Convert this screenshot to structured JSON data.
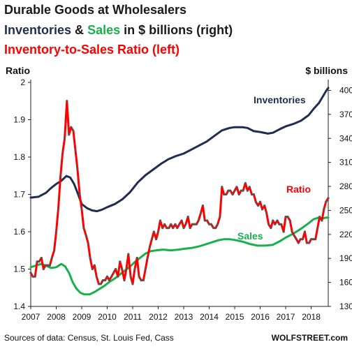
{
  "title_lines": {
    "line1": "Durable Goods at Wholesalers",
    "line2_a": "Inventories",
    "line2_b": "&",
    "line2_c": "Sales",
    "line2_d": "in $ billions  (right)",
    "line3": "Inventory-to-Sales  Ratio (left)"
  },
  "footer": {
    "source": "Sources of data: Census, St. Louis Fed, Cass",
    "brand": "WOLFSTREET.com"
  },
  "colors": {
    "inventories": "#1f2d4f",
    "sales": "#19b04b",
    "ratio": "#ff0000",
    "ratio_markers": "#555555"
  },
  "chart_data": {
    "type": "line",
    "left_axis": {
      "label": "Ratio",
      "ylim": [
        1.4,
        2.0
      ],
      "ticks": [
        "1.4",
        "1.5",
        "1.6",
        "1.7",
        "1.8",
        "1.9",
        "2"
      ]
    },
    "right_axis": {
      "label": "$ billions",
      "ylim": [
        130,
        410
      ],
      "ticks": [
        "130",
        "160",
        "190",
        "220",
        "250",
        "280",
        "310",
        "340",
        "370",
        "400"
      ]
    },
    "x_ticks": [
      "2007",
      "2008",
      "2009",
      "2010",
      "2011",
      "2012",
      "2013",
      "2014",
      "2015",
      "2016",
      "2017",
      "2018"
    ],
    "xlim": [
      2007.0,
      2018.67
    ],
    "grid": false,
    "annotations": {
      "inventories": "Inventories",
      "sales": "Sales",
      "ratio": "Ratio"
    },
    "series": [
      {
        "name": "Inventories",
        "axis": "right",
        "points": [
          [
            2007.0,
            266
          ],
          [
            2007.3,
            267
          ],
          [
            2007.6,
            272
          ],
          [
            2007.8,
            278
          ],
          [
            2008.0,
            283
          ],
          [
            2008.2,
            287
          ],
          [
            2008.4,
            293
          ],
          [
            2008.55,
            291
          ],
          [
            2008.7,
            283
          ],
          [
            2008.85,
            271
          ],
          [
            2009.0,
            258
          ],
          [
            2009.2,
            253
          ],
          [
            2009.4,
            250
          ],
          [
            2009.6,
            249
          ],
          [
            2009.8,
            251
          ],
          [
            2010.0,
            254
          ],
          [
            2010.3,
            258
          ],
          [
            2010.6,
            264
          ],
          [
            2010.9,
            273
          ],
          [
            2011.2,
            285
          ],
          [
            2011.5,
            294
          ],
          [
            2011.8,
            301
          ],
          [
            2012.1,
            308
          ],
          [
            2012.4,
            314
          ],
          [
            2012.7,
            318
          ],
          [
            2013.0,
            321
          ],
          [
            2013.3,
            326
          ],
          [
            2013.6,
            331
          ],
          [
            2013.9,
            336
          ],
          [
            2014.2,
            343
          ],
          [
            2014.5,
            350
          ],
          [
            2014.8,
            353
          ],
          [
            2015.0,
            354
          ],
          [
            2015.3,
            354
          ],
          [
            2015.5,
            353
          ],
          [
            2015.75,
            349
          ],
          [
            2016.0,
            348
          ],
          [
            2016.3,
            346
          ],
          [
            2016.5,
            347
          ],
          [
            2016.8,
            352
          ],
          [
            2017.0,
            355
          ],
          [
            2017.3,
            358
          ],
          [
            2017.6,
            362
          ],
          [
            2017.9,
            369
          ],
          [
            2018.1,
            377
          ],
          [
            2018.3,
            384
          ],
          [
            2018.45,
            392
          ],
          [
            2018.6,
            400
          ],
          [
            2018.67,
            403
          ]
        ]
      },
      {
        "name": "Sales",
        "axis": "right",
        "points": [
          [
            2007.0,
            179
          ],
          [
            2007.2,
            181
          ],
          [
            2007.4,
            183
          ],
          [
            2007.6,
            181
          ],
          [
            2007.8,
            178
          ],
          [
            2008.0,
            179
          ],
          [
            2008.2,
            183
          ],
          [
            2008.35,
            180
          ],
          [
            2008.5,
            172
          ],
          [
            2008.65,
            160
          ],
          [
            2008.8,
            152
          ],
          [
            2008.95,
            147
          ],
          [
            2009.1,
            145
          ],
          [
            2009.3,
            145
          ],
          [
            2009.5,
            148
          ],
          [
            2009.7,
            152
          ],
          [
            2009.9,
            156
          ],
          [
            2010.1,
            161
          ],
          [
            2010.3,
            165
          ],
          [
            2010.5,
            170
          ],
          [
            2010.7,
            175
          ],
          [
            2010.9,
            180
          ],
          [
            2011.1,
            186
          ],
          [
            2011.3,
            191
          ],
          [
            2011.5,
            196
          ],
          [
            2011.7,
            199
          ],
          [
            2011.9,
            200
          ],
          [
            2012.2,
            201
          ],
          [
            2012.5,
            200
          ],
          [
            2012.8,
            201
          ],
          [
            2013.0,
            202
          ],
          [
            2013.3,
            203
          ],
          [
            2013.6,
            205
          ],
          [
            2013.9,
            208
          ],
          [
            2014.2,
            211
          ],
          [
            2014.4,
            213
          ],
          [
            2014.6,
            214
          ],
          [
            2014.8,
            214
          ],
          [
            2015.0,
            213
          ],
          [
            2015.3,
            211
          ],
          [
            2015.6,
            208
          ],
          [
            2015.9,
            206
          ],
          [
            2016.2,
            206
          ],
          [
            2016.5,
            207
          ],
          [
            2016.8,
            212
          ],
          [
            2017.0,
            216
          ],
          [
            2017.3,
            221
          ],
          [
            2017.6,
            227
          ],
          [
            2017.9,
            234
          ],
          [
            2018.1,
            239
          ],
          [
            2018.3,
            241
          ],
          [
            2018.45,
            240
          ],
          [
            2018.6,
            241
          ],
          [
            2018.67,
            241
          ]
        ]
      },
      {
        "name": "Ratio",
        "axis": "left",
        "points": [
          [
            2007.0,
            1.49
          ],
          [
            2007.08,
            1.48
          ],
          [
            2007.17,
            1.48
          ],
          [
            2007.25,
            1.52
          ],
          [
            2007.33,
            1.52
          ],
          [
            2007.42,
            1.53
          ],
          [
            2007.5,
            1.5
          ],
          [
            2007.58,
            1.51
          ],
          [
            2007.67,
            1.51
          ],
          [
            2007.75,
            1.51
          ],
          [
            2007.83,
            1.53
          ],
          [
            2007.92,
            1.55
          ],
          [
            2008.0,
            1.6
          ],
          [
            2008.08,
            1.66
          ],
          [
            2008.17,
            1.75
          ],
          [
            2008.25,
            1.81
          ],
          [
            2008.33,
            1.85
          ],
          [
            2008.42,
            1.95
          ],
          [
            2008.5,
            1.86
          ],
          [
            2008.58,
            1.88
          ],
          [
            2008.67,
            1.87
          ],
          [
            2008.75,
            1.82
          ],
          [
            2008.83,
            1.77
          ],
          [
            2008.92,
            1.7
          ],
          [
            2009.0,
            1.66
          ],
          [
            2009.08,
            1.61
          ],
          [
            2009.17,
            1.59
          ],
          [
            2009.25,
            1.57
          ],
          [
            2009.33,
            1.53
          ],
          [
            2009.42,
            1.5
          ],
          [
            2009.5,
            1.51
          ],
          [
            2009.58,
            1.48
          ],
          [
            2009.67,
            1.46
          ],
          [
            2009.75,
            1.46
          ],
          [
            2009.83,
            1.47
          ],
          [
            2009.92,
            1.47
          ],
          [
            2010.0,
            1.48
          ],
          [
            2010.08,
            1.47
          ],
          [
            2010.17,
            1.48
          ],
          [
            2010.25,
            1.49
          ],
          [
            2010.33,
            1.5
          ],
          [
            2010.42,
            1.48
          ],
          [
            2010.5,
            1.52
          ],
          [
            2010.58,
            1.5
          ],
          [
            2010.67,
            1.47
          ],
          [
            2010.75,
            1.5
          ],
          [
            2010.83,
            1.54
          ],
          [
            2010.92,
            1.48
          ],
          [
            2011.0,
            1.46
          ],
          [
            2011.08,
            1.5
          ],
          [
            2011.17,
            1.53
          ],
          [
            2011.25,
            1.48
          ],
          [
            2011.33,
            1.47
          ],
          [
            2011.42,
            1.47
          ],
          [
            2011.5,
            1.5
          ],
          [
            2011.58,
            1.53
          ],
          [
            2011.67,
            1.56
          ],
          [
            2011.75,
            1.58
          ],
          [
            2011.83,
            1.6
          ],
          [
            2011.92,
            1.58
          ],
          [
            2012.0,
            1.6
          ],
          [
            2012.08,
            1.63
          ],
          [
            2012.17,
            1.61
          ],
          [
            2012.25,
            1.62
          ],
          [
            2012.33,
            1.61
          ],
          [
            2012.42,
            1.61
          ],
          [
            2012.5,
            1.62
          ],
          [
            2012.58,
            1.61
          ],
          [
            2012.67,
            1.62
          ],
          [
            2012.75,
            1.61
          ],
          [
            2012.83,
            1.62
          ],
          [
            2012.92,
            1.63
          ],
          [
            2013.0,
            1.61
          ],
          [
            2013.08,
            1.62
          ],
          [
            2013.17,
            1.64
          ],
          [
            2013.25,
            1.61
          ],
          [
            2013.33,
            1.62
          ],
          [
            2013.42,
            1.62
          ],
          [
            2013.5,
            1.62
          ],
          [
            2013.58,
            1.63
          ],
          [
            2013.67,
            1.65
          ],
          [
            2013.75,
            1.67
          ],
          [
            2013.83,
            1.63
          ],
          [
            2013.92,
            1.63
          ],
          [
            2014.0,
            1.62
          ],
          [
            2014.08,
            1.62
          ],
          [
            2014.17,
            1.61
          ],
          [
            2014.25,
            1.61
          ],
          [
            2014.33,
            1.62
          ],
          [
            2014.42,
            1.64
          ],
          [
            2014.5,
            1.72
          ],
          [
            2014.58,
            1.7
          ],
          [
            2014.67,
            1.7
          ],
          [
            2014.75,
            1.71
          ],
          [
            2014.83,
            1.71
          ],
          [
            2014.92,
            1.7
          ],
          [
            2015.0,
            1.71
          ],
          [
            2015.08,
            1.72
          ],
          [
            2015.17,
            1.7
          ],
          [
            2015.25,
            1.71
          ],
          [
            2015.33,
            1.71
          ],
          [
            2015.42,
            1.73
          ],
          [
            2015.5,
            1.71
          ],
          [
            2015.58,
            1.72
          ],
          [
            2015.67,
            1.7
          ],
          [
            2015.75,
            1.7
          ],
          [
            2015.83,
            1.68
          ],
          [
            2015.92,
            1.67
          ],
          [
            2016.0,
            1.68
          ],
          [
            2016.08,
            1.66
          ],
          [
            2016.17,
            1.67
          ],
          [
            2016.25,
            1.65
          ],
          [
            2016.33,
            1.62
          ],
          [
            2016.42,
            1.61
          ],
          [
            2016.5,
            1.63
          ],
          [
            2016.58,
            1.62
          ],
          [
            2016.67,
            1.63
          ],
          [
            2016.75,
            1.62
          ],
          [
            2016.83,
            1.62
          ],
          [
            2016.92,
            1.6
          ],
          [
            2017.0,
            1.64
          ],
          [
            2017.08,
            1.64
          ],
          [
            2017.17,
            1.63
          ],
          [
            2017.25,
            1.6
          ],
          [
            2017.33,
            1.59
          ],
          [
            2017.42,
            1.58
          ],
          [
            2017.5,
            1.57
          ],
          [
            2017.58,
            1.58
          ],
          [
            2017.67,
            1.58
          ],
          [
            2017.75,
            1.6
          ],
          [
            2017.83,
            1.57
          ],
          [
            2017.92,
            1.57
          ],
          [
            2018.0,
            1.58
          ],
          [
            2018.08,
            1.58
          ],
          [
            2018.17,
            1.58
          ],
          [
            2018.25,
            1.61
          ],
          [
            2018.33,
            1.64
          ],
          [
            2018.42,
            1.63
          ],
          [
            2018.5,
            1.66
          ],
          [
            2018.58,
            1.68
          ],
          [
            2018.67,
            1.69
          ]
        ]
      }
    ]
  }
}
